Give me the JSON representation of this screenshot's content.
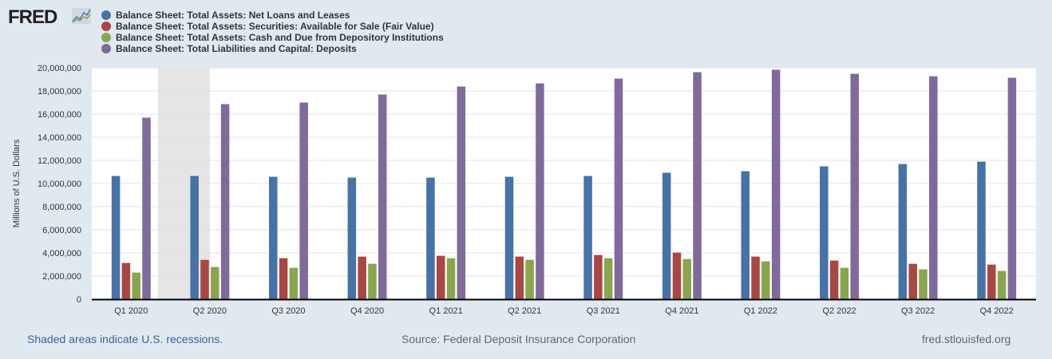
{
  "logo": "FRED",
  "chart_data": {
    "type": "bar",
    "title": "",
    "xlabel": "",
    "ylabel": "Millions of U.S. Dollars",
    "ylim": [
      0,
      20000000
    ],
    "yticks": [
      0,
      2000000,
      4000000,
      6000000,
      8000000,
      10000000,
      12000000,
      14000000,
      16000000,
      18000000,
      20000000
    ],
    "ytick_labels": [
      "0",
      "2,000,000",
      "4,000,000",
      "6,000,000",
      "8,000,000",
      "10,000,000",
      "12,000,000",
      "14,000,000",
      "16,000,000",
      "18,000,000",
      "20,000,000"
    ],
    "grid": true,
    "legend_position": "top-left",
    "categories": [
      "Q1 2020",
      "Q2 2020",
      "Q3 2020",
      "Q4 2020",
      "Q1 2021",
      "Q2 2021",
      "Q3 2021",
      "Q4 2021",
      "Q1 2022",
      "Q2 2022",
      "Q3 2022",
      "Q4 2022"
    ],
    "recession": {
      "from_category": 0.35,
      "to_category": 1.0
    },
    "series": [
      {
        "name": "Balance Sheet: Total Assets: Net Loans and Leases",
        "color": "#4572a7",
        "values": [
          10650000,
          10650000,
          10580000,
          10510000,
          10510000,
          10580000,
          10650000,
          10930000,
          11060000,
          11480000,
          11680000,
          11890000
        ]
      },
      {
        "name": "Balance Sheet: Total Assets: Securities: Available for Sale (Fair Value)",
        "color": "#aa4643",
        "values": [
          3130000,
          3400000,
          3540000,
          3680000,
          3750000,
          3680000,
          3820000,
          4030000,
          3680000,
          3340000,
          3060000,
          2990000
        ]
      },
      {
        "name": "Balance Sheet: Total Assets: Cash and Due from Depository Institutions",
        "color": "#89a54e",
        "values": [
          2300000,
          2780000,
          2710000,
          3060000,
          3540000,
          3400000,
          3540000,
          3470000,
          3270000,
          2710000,
          2580000,
          2440000
        ]
      },
      {
        "name": "Balance Sheet: Total Liabilities and Capital: Deposits",
        "color": "#80699b",
        "values": [
          15690000,
          16860000,
          17000000,
          17690000,
          18380000,
          18650000,
          19070000,
          19620000,
          19830000,
          19480000,
          19270000,
          19140000
        ]
      }
    ]
  },
  "footer": {
    "shaded": "Shaded areas indicate U.S. recessions.",
    "source": "Source: Federal Deposit Insurance Corporation",
    "site": "fred.stlouisfed.org"
  }
}
